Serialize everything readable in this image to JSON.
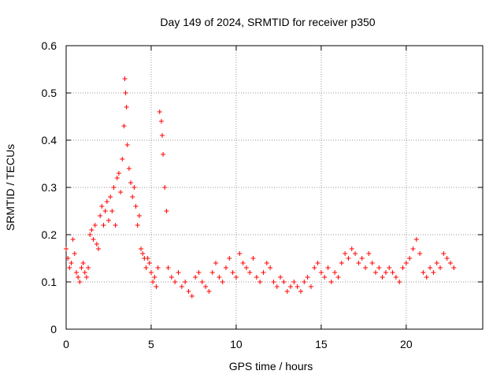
{
  "chart_data": {
    "type": "scatter",
    "title": "Day 149 of 2024, SRMTID for receiver p350",
    "xlabel": "GPS time / hours",
    "ylabel": "SRMTID / TECUs",
    "xlim": [
      0,
      24.5
    ],
    "ylim": [
      0,
      0.6
    ],
    "xticks": [
      0,
      5,
      10,
      15,
      20
    ],
    "yticks": [
      0,
      0.1,
      0.2,
      0.3,
      0.4,
      0.5,
      0.6
    ],
    "xtick_labels": [
      "0",
      "5",
      "10",
      "15",
      "20"
    ],
    "ytick_labels": [
      "0",
      "0.1",
      "0.2",
      "0.3",
      "0.4",
      "0.5",
      "0.6"
    ],
    "grid": true,
    "marker": "+",
    "color": "#ff0000",
    "series": [
      {
        "name": "SRMTID",
        "x": [
          0.0,
          0.1,
          0.2,
          0.3,
          0.4,
          0.5,
          0.6,
          0.7,
          0.8,
          0.9,
          1.0,
          1.1,
          1.2,
          1.3,
          1.4,
          1.5,
          1.6,
          1.7,
          1.8,
          1.9,
          2.0,
          2.1,
          2.2,
          2.3,
          2.4,
          2.5,
          2.6,
          2.7,
          2.8,
          2.9,
          3.0,
          3.1,
          3.2,
          3.3,
          3.4,
          3.45,
          3.5,
          3.55,
          3.6,
          3.7,
          3.8,
          3.9,
          4.0,
          4.1,
          4.2,
          4.3,
          4.4,
          4.5,
          4.6,
          4.7,
          4.8,
          4.9,
          5.0,
          5.1,
          5.2,
          5.3,
          5.4,
          5.5,
          5.6,
          5.65,
          5.7,
          5.8,
          5.9,
          6.0,
          6.2,
          6.4,
          6.6,
          6.8,
          7.0,
          7.2,
          7.4,
          7.6,
          7.8,
          8.0,
          8.2,
          8.4,
          8.6,
          8.8,
          9.0,
          9.2,
          9.4,
          9.6,
          9.8,
          10.0,
          10.2,
          10.4,
          10.6,
          10.8,
          11.0,
          11.2,
          11.4,
          11.6,
          11.8,
          12.0,
          12.2,
          12.4,
          12.6,
          12.8,
          13.0,
          13.2,
          13.4,
          13.6,
          13.8,
          14.0,
          14.2,
          14.4,
          14.6,
          14.8,
          15.0,
          15.2,
          15.4,
          15.6,
          15.8,
          16.0,
          16.2,
          16.4,
          16.6,
          16.8,
          17.0,
          17.2,
          17.4,
          17.6,
          17.8,
          18.0,
          18.2,
          18.4,
          18.6,
          18.8,
          19.0,
          19.2,
          19.4,
          19.6,
          19.8,
          20.0,
          20.2,
          20.4,
          20.6,
          20.8,
          21.0,
          21.2,
          21.4,
          21.6,
          21.8,
          22.0,
          22.2,
          22.4,
          22.6,
          22.8
        ],
        "y": [
          0.17,
          0.15,
          0.13,
          0.14,
          0.19,
          0.16,
          0.12,
          0.11,
          0.1,
          0.13,
          0.14,
          0.12,
          0.11,
          0.13,
          0.2,
          0.21,
          0.19,
          0.22,
          0.18,
          0.17,
          0.24,
          0.26,
          0.22,
          0.25,
          0.27,
          0.23,
          0.28,
          0.25,
          0.3,
          0.22,
          0.32,
          0.33,
          0.29,
          0.36,
          0.43,
          0.53,
          0.5,
          0.47,
          0.39,
          0.34,
          0.31,
          0.28,
          0.3,
          0.26,
          0.22,
          0.24,
          0.17,
          0.16,
          0.15,
          0.13,
          0.15,
          0.14,
          0.12,
          0.1,
          0.11,
          0.09,
          0.13,
          0.46,
          0.44,
          0.41,
          0.37,
          0.3,
          0.25,
          0.13,
          0.11,
          0.1,
          0.12,
          0.09,
          0.1,
          0.08,
          0.07,
          0.11,
          0.12,
          0.1,
          0.09,
          0.08,
          0.12,
          0.14,
          0.11,
          0.1,
          0.13,
          0.15,
          0.12,
          0.11,
          0.16,
          0.14,
          0.13,
          0.12,
          0.15,
          0.11,
          0.1,
          0.12,
          0.14,
          0.13,
          0.1,
          0.09,
          0.11,
          0.1,
          0.08,
          0.09,
          0.1,
          0.09,
          0.08,
          0.1,
          0.11,
          0.09,
          0.13,
          0.14,
          0.12,
          0.11,
          0.13,
          0.1,
          0.12,
          0.11,
          0.14,
          0.16,
          0.15,
          0.17,
          0.16,
          0.14,
          0.15,
          0.13,
          0.16,
          0.14,
          0.12,
          0.13,
          0.11,
          0.12,
          0.13,
          0.12,
          0.11,
          0.1,
          0.13,
          0.14,
          0.15,
          0.17,
          0.19,
          0.16,
          0.12,
          0.11,
          0.13,
          0.12,
          0.14,
          0.13,
          0.16,
          0.15,
          0.14,
          0.13
        ]
      }
    ]
  }
}
